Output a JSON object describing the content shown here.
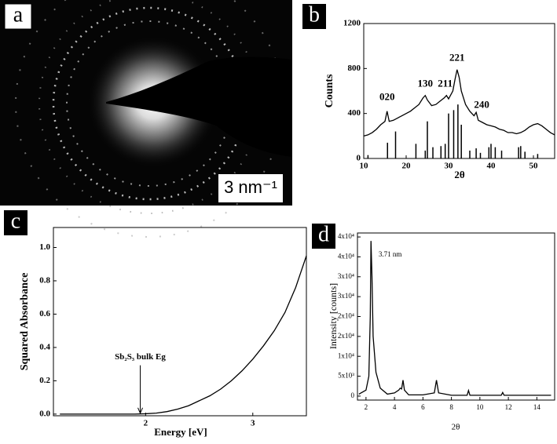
{
  "panel_labels": [
    "a",
    "b",
    "c",
    "d"
  ],
  "scale_bar": "3 nm⁻¹",
  "chart_data": [
    {
      "type": "line",
      "xlabel": "2θ",
      "ylabel": "Counts",
      "xlim": [
        10,
        55
      ],
      "ylim": [
        0,
        1200
      ],
      "xticks": [
        10,
        20,
        30,
        40,
        50
      ],
      "yticks": [
        0,
        400,
        800,
        1200
      ],
      "series": [
        {
          "color": "#000000",
          "x": [
            10,
            11,
            12,
            13,
            14,
            15,
            15.5,
            16,
            17,
            18,
            19,
            20,
            21,
            22,
            23,
            24,
            24.5,
            25,
            26,
            27,
            28,
            29,
            29.5,
            30,
            31,
            31.5,
            32,
            32.5,
            33,
            34,
            35,
            36,
            36.5,
            37,
            38,
            39,
            40,
            41,
            42,
            43,
            44,
            45,
            46,
            47,
            48,
            49,
            50,
            51,
            52,
            53,
            54,
            55
          ],
          "values": [
            200,
            210,
            230,
            260,
            300,
            330,
            420,
            330,
            340,
            360,
            380,
            400,
            420,
            450,
            480,
            540,
            560,
            520,
            470,
            480,
            510,
            540,
            560,
            530,
            600,
            700,
            790,
            720,
            600,
            480,
            420,
            380,
            410,
            340,
            320,
            300,
            290,
            280,
            260,
            250,
            230,
            230,
            220,
            230,
            250,
            280,
            300,
            310,
            290,
            260,
            230,
            210
          ]
        },
        {
          "color": "#000000",
          "style": "stick",
          "x": [
            11,
            15.6,
            17.5,
            22.3,
            24.5,
            25,
            26.3,
            28.2,
            29.2,
            30,
            31.2,
            32.2,
            33,
            35,
            36.5,
            37.5,
            39.5,
            40,
            41,
            42.5,
            46.5,
            47,
            48,
            51
          ],
          "values": [
            30,
            140,
            240,
            130,
            70,
            330,
            100,
            110,
            130,
            400,
            430,
            480,
            300,
            70,
            90,
            50,
            100,
            130,
            100,
            70,
            100,
            110,
            60,
            40
          ]
        }
      ],
      "annotations": [
        {
          "text": "020",
          "x": 15.5,
          "y": 540
        },
        {
          "text": "130",
          "x": 24.5,
          "y": 660
        },
        {
          "text": "211",
          "x": 29.2,
          "y": 660
        },
        {
          "text": "221",
          "x": 32,
          "y": 890
        },
        {
          "text": "240",
          "x": 37.8,
          "y": 470
        }
      ]
    },
    {
      "type": "line",
      "xlabel": "Energy [eV]",
      "ylabel": "Squared Absorbance",
      "xlim": [
        1.14,
        3.5
      ],
      "ylim": [
        -0.01,
        1.12
      ],
      "xticks": [
        2,
        3
      ],
      "yticks": [
        {
          "value": 0,
          "label": "0.0"
        },
        0.2,
        0.4,
        0.6,
        0.8,
        {
          "value": 1,
          "label": "1.0"
        }
      ],
      "series": [
        {
          "color": "#000000",
          "x": [
            1.2,
            1.9,
            2.0,
            2.1,
            2.2,
            2.3,
            2.4,
            2.5,
            2.6,
            2.7,
            2.8,
            2.9,
            3.0,
            3.1,
            3.2,
            3.3,
            3.4,
            3.5
          ],
          "values": [
            0,
            0,
            0.002,
            0.006,
            0.015,
            0.03,
            0.05,
            0.08,
            0.11,
            0.15,
            0.2,
            0.26,
            0.33,
            0.41,
            0.5,
            0.61,
            0.76,
            0.95
          ]
        }
      ],
      "annotations": [
        {
          "text": "Sb₂S₃ bulk Eg",
          "x": 1.95,
          "y": 0.34,
          "arrow": true,
          "arrow_to": 0.005
        }
      ]
    },
    {
      "type": "line",
      "xlabel": "2θ",
      "ylabel": "Intensity [counts]",
      "xlim": [
        1.4,
        15.25
      ],
      "ylim": [
        -1000,
        41000
      ],
      "xticks": [
        2,
        4,
        6,
        8,
        10,
        12,
        14
      ],
      "yticks": [
        0,
        {
          "value": 5000,
          "label": "5x10³"
        },
        {
          "value": 10000,
          "label": "1x10⁴"
        },
        {
          "value": 15000,
          "label": "2x10⁴"
        },
        {
          "value": 20000,
          "label": "2x10⁴"
        },
        {
          "value": 25000,
          "label": "3x10⁴"
        },
        {
          "value": 30000,
          "label": "3x10⁴"
        },
        {
          "value": 35000,
          "label": "4x10⁴"
        },
        {
          "value": 40000,
          "label": "4x10⁴"
        }
      ],
      "series": [
        {
          "color": "#000000",
          "x": [
            1.5,
            2.0,
            2.2,
            2.3,
            2.35,
            2.42,
            2.5,
            2.7,
            3.0,
            3.5,
            4.0,
            4.3,
            4.4,
            4.5,
            4.6,
            4.7,
            5,
            6,
            6.8,
            6.95,
            7.1,
            8,
            9.1,
            9.2,
            9.3,
            11.5,
            11.6,
            11.7,
            14,
            15
          ],
          "values": [
            500,
            1500,
            5000,
            20000,
            39000,
            30000,
            15000,
            6000,
            2000,
            500,
            800,
            1500,
            2000,
            1800,
            4000,
            1500,
            300,
            300,
            800,
            4000,
            800,
            200,
            200,
            1400,
            200,
            200,
            900,
            200,
            200,
            200
          ]
        }
      ],
      "annotations": [
        {
          "text": "3.71 nm",
          "x": 3.7,
          "y": 35500
        }
      ]
    }
  ]
}
